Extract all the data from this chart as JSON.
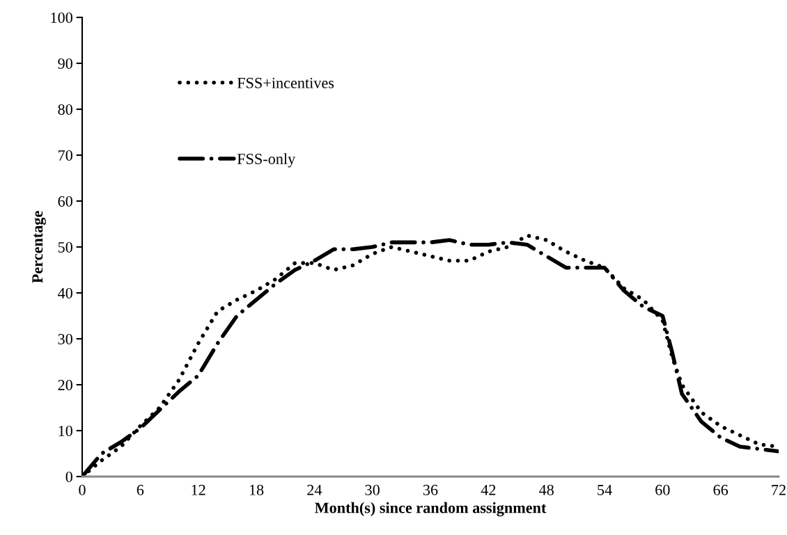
{
  "chart_data": {
    "type": "line",
    "xlabel": "Month(s) since random assignment",
    "ylabel": "Percentage",
    "xlim": [
      0,
      72
    ],
    "ylim": [
      0,
      100
    ],
    "xticks": [
      0,
      6,
      12,
      18,
      24,
      30,
      36,
      42,
      48,
      54,
      60,
      66,
      72
    ],
    "yticks": [
      0,
      10,
      20,
      30,
      40,
      50,
      60,
      70,
      80,
      90,
      100
    ],
    "x": [
      0,
      2,
      4,
      6,
      8,
      10,
      12,
      14,
      16,
      18,
      20,
      22,
      24,
      26,
      28,
      30,
      32,
      34,
      36,
      38,
      40,
      42,
      44,
      46,
      48,
      50,
      52,
      54,
      56,
      58,
      60,
      61,
      62,
      64,
      66,
      68,
      70,
      72
    ],
    "grid": false,
    "legend": "top left",
    "marker": "none",
    "series": [
      {
        "name": "FSS+incentives",
        "color": "#000000",
        "line_style": "dotted",
        "values": [
          0,
          3.5,
          6.5,
          11,
          15,
          21,
          29,
          36,
          38.5,
          40.5,
          43,
          46.5,
          46.5,
          45,
          46,
          48.5,
          50,
          49,
          48,
          47,
          47,
          49,
          50,
          52.5,
          51.5,
          49,
          47,
          45.5,
          41,
          38.5,
          34,
          26,
          20,
          14,
          11,
          9,
          7,
          6.5
        ]
      },
      {
        "name": "FSS-only",
        "color": "#000000",
        "line_style": "dashed",
        "values": [
          0,
          5,
          7.5,
          10.5,
          14.5,
          18.5,
          22,
          29,
          35,
          38.5,
          42,
          45,
          47,
          49.5,
          49.5,
          50,
          51,
          51,
          51,
          51.5,
          50.5,
          50.5,
          51,
          50.5,
          48,
          45.5,
          45.5,
          45.5,
          40.5,
          37,
          35,
          27,
          18,
          12,
          8.5,
          6.5,
          6,
          5.5
        ]
      }
    ]
  }
}
